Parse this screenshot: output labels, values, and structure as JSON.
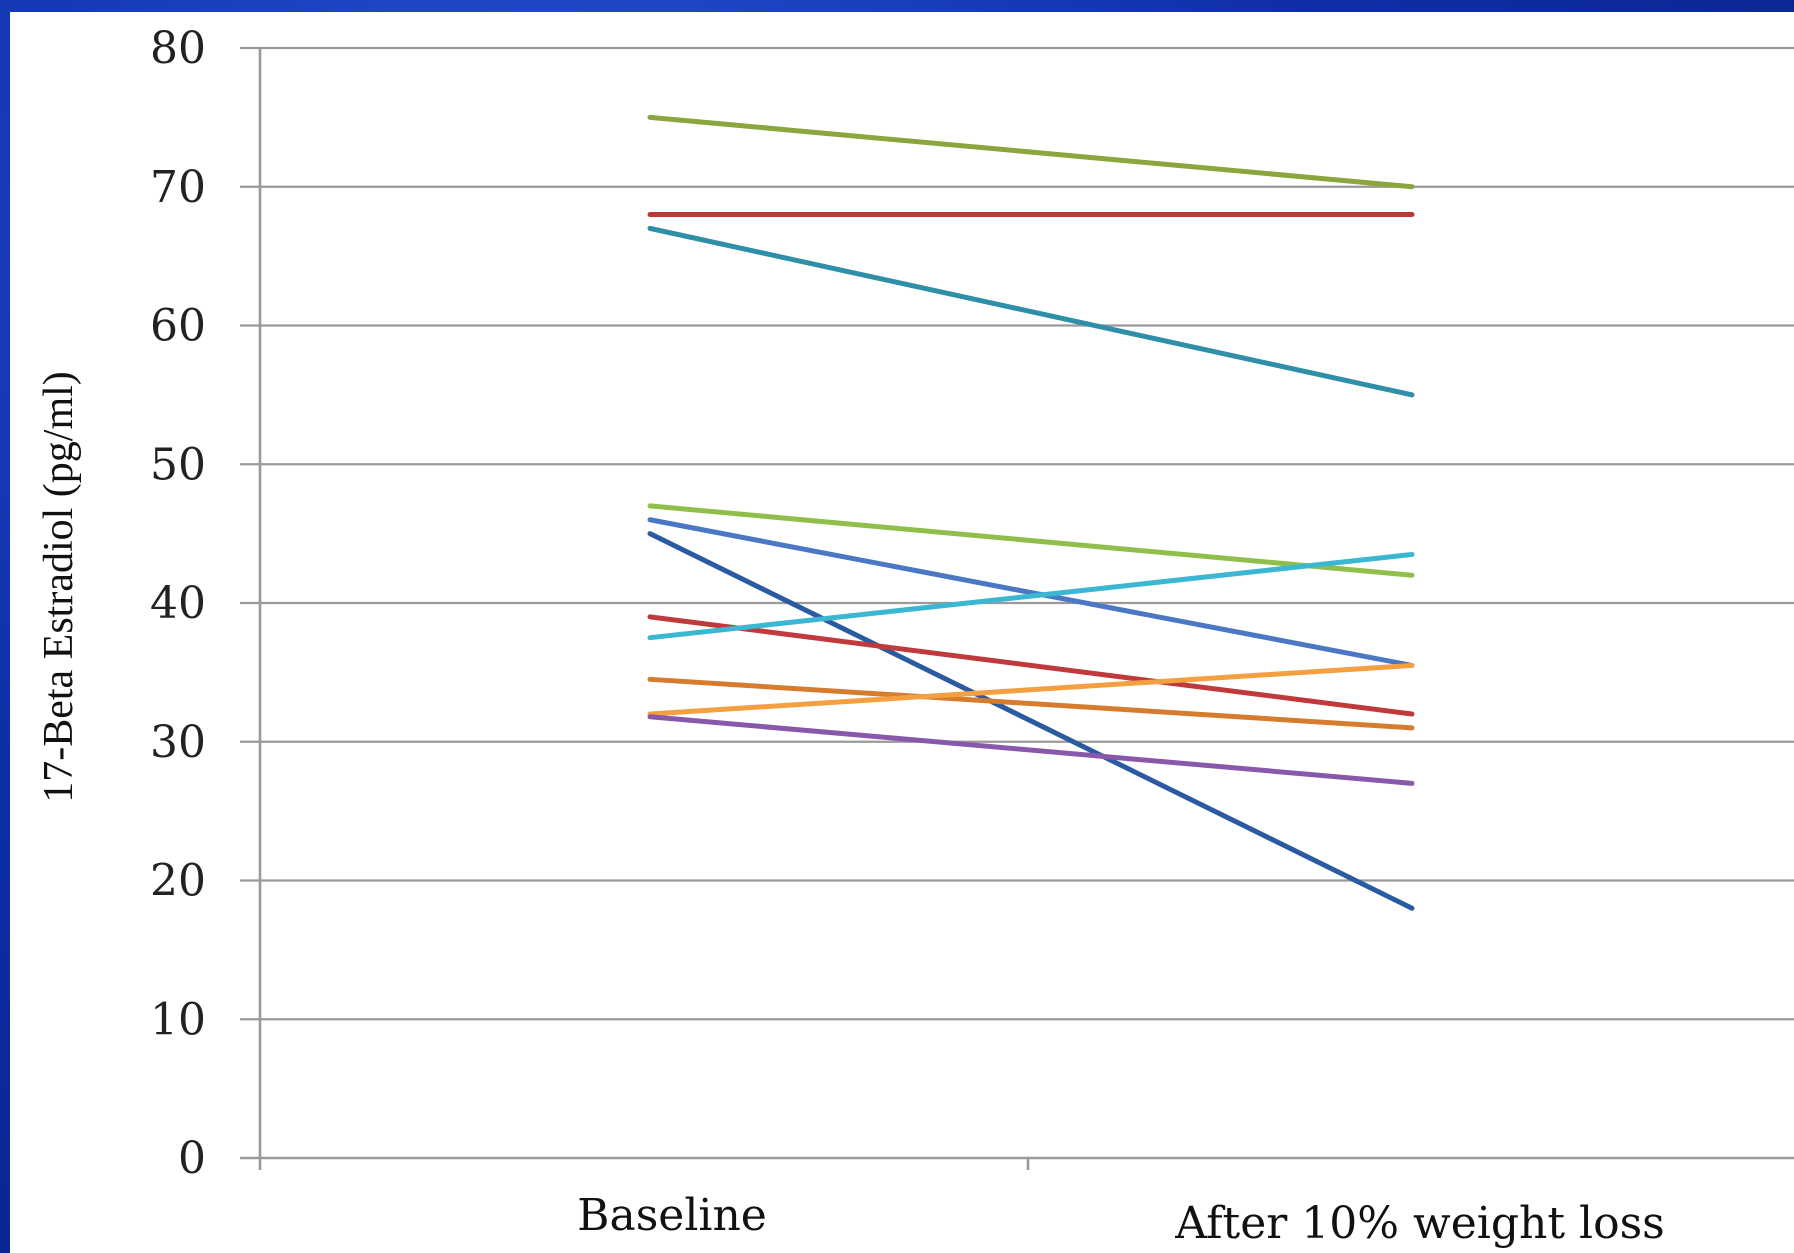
{
  "chart_data": {
    "type": "line",
    "ylabel": "17-Beta Estradiol (pg/ml)",
    "categories": [
      "Baseline",
      "After 10% weight loss"
    ],
    "ylim": [
      0,
      80
    ],
    "yticks": [
      0,
      10,
      20,
      30,
      40,
      50,
      60,
      70,
      80
    ],
    "grid": true,
    "legend": "none",
    "series": [
      {
        "values": [
          75,
          70
        ],
        "color": "#8aa63c"
      },
      {
        "values": [
          68,
          68
        ],
        "color": "#b83a36"
      },
      {
        "values": [
          67,
          55
        ],
        "color": "#2f8fa8"
      },
      {
        "values": [
          47,
          42
        ],
        "color": "#8fbf4a"
      },
      {
        "values": [
          46,
          35.5
        ],
        "color": "#4a78c4"
      },
      {
        "values": [
          45,
          18
        ],
        "color": "#2a5aa0"
      },
      {
        "values": [
          39,
          32
        ],
        "color": "#c0393b"
      },
      {
        "values": [
          37.5,
          43.5
        ],
        "color": "#3cb7d2"
      },
      {
        "values": [
          34.5,
          31
        ],
        "color": "#d57c2e"
      },
      {
        "values": [
          32,
          35.5
        ],
        "color": "#f5a040"
      },
      {
        "values": [
          31.8,
          27
        ],
        "color": "#8a58aa"
      }
    ]
  }
}
